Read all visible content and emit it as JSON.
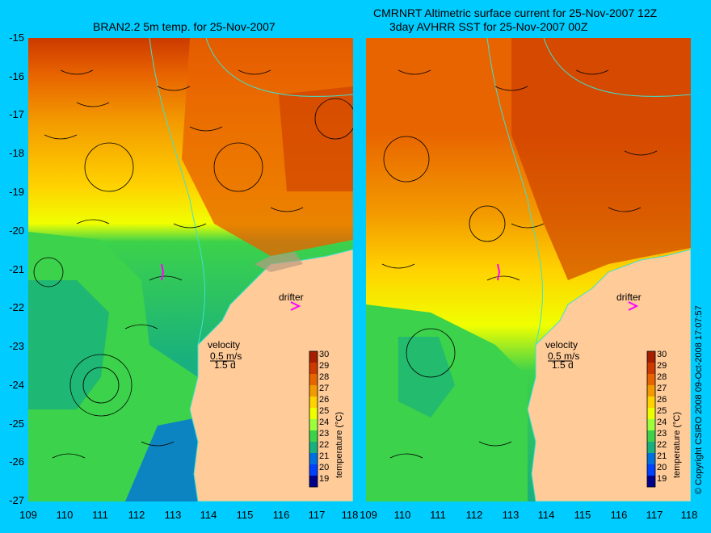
{
  "titles": {
    "left": "BRAN2.2 5m temp. for 25-Nov-2007",
    "right_line1": "CMRNRT Altimetric surface current for 25-Nov-2007 12Z",
    "right_line2": "3day AVHRR SST for 25-Nov-2007 00Z"
  },
  "axes": {
    "lat_ticks": [
      "-15",
      "-16",
      "-17",
      "-18",
      "-19",
      "-20",
      "-21",
      "-22",
      "-23",
      "-24",
      "-25",
      "-26",
      "-27"
    ],
    "lon_ticks": [
      "109",
      "110",
      "111",
      "112",
      "113",
      "114",
      "115",
      "116",
      "117",
      "118"
    ],
    "lon_ticks_right": [
      "109",
      "110",
      "111",
      "112",
      "113",
      "114",
      "115",
      "116",
      "117",
      "118"
    ]
  },
  "labels": {
    "drifter": "drifter",
    "velocity": "velocity",
    "scale_speed": "0.5 m/s",
    "scale_time": "1.5 d",
    "colorbar_title": "temperature (°C)"
  },
  "colorbar": {
    "ticks": [
      "30",
      "29",
      "28",
      "27",
      "26",
      "25",
      "24",
      "23",
      "22",
      "21",
      "20",
      "19"
    ],
    "colors": [
      "#a61e00",
      "#cc3a00",
      "#e86400",
      "#f39a00",
      "#ffd200",
      "#f0ff00",
      "#9cff3c",
      "#3cd24b",
      "#18b07e",
      "#0070e0",
      "#0040ff",
      "#00008a"
    ]
  },
  "copyright": "© Copyright CSIRO 2008    09-Oct-2008 17:07:57",
  "colors": {
    "background": "#00ccff",
    "land": "#ffcb99",
    "coastline": "#40e0d0",
    "drifter": "#ff00ff"
  }
}
